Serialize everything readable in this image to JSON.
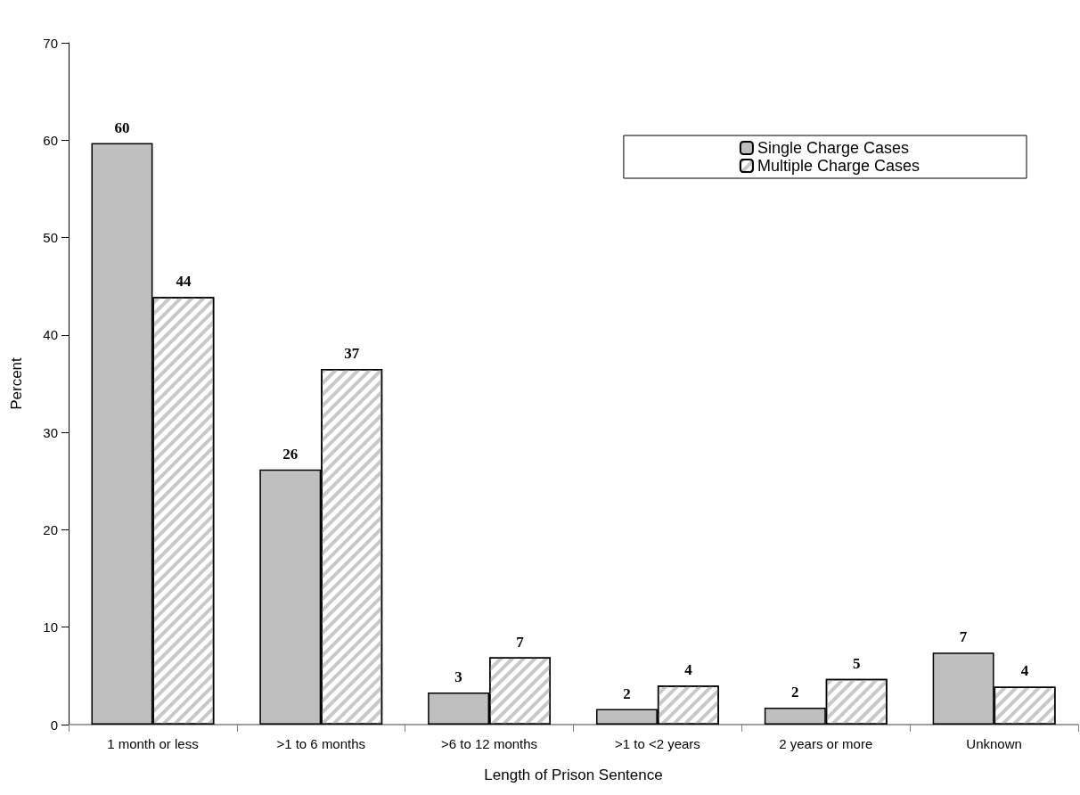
{
  "chart_data": {
    "type": "bar",
    "xlabel": "Length of Prison Sentence",
    "ylabel": "Percent",
    "categories": [
      "1 month or less",
      ">1 to 6 months",
      ">6 to 12 months",
      ">1 to <2 years",
      "2 years or more",
      "Unknown"
    ],
    "series": [
      {
        "name": "Single Charge Cases",
        "color": "#bfbfbf",
        "values": [
          59.7,
          26.2,
          3.3,
          1.6,
          1.75,
          7.4
        ],
        "value_labels": [
          "60",
          "26",
          "3",
          "2",
          "2",
          "7"
        ]
      },
      {
        "name": "Multiple Charge Cases",
        "color": "#ffffff",
        "values": [
          43.9,
          36.5,
          6.9,
          4.0,
          4.7,
          3.9
        ],
        "value_labels": [
          "44",
          "37",
          "7",
          "4",
          "5",
          "4"
        ]
      }
    ],
    "ylim": [
      0,
      70
    ],
    "yticks": [
      0,
      10,
      20,
      30,
      40,
      50,
      60,
      70
    ],
    "grid": false,
    "legend": "top right"
  }
}
